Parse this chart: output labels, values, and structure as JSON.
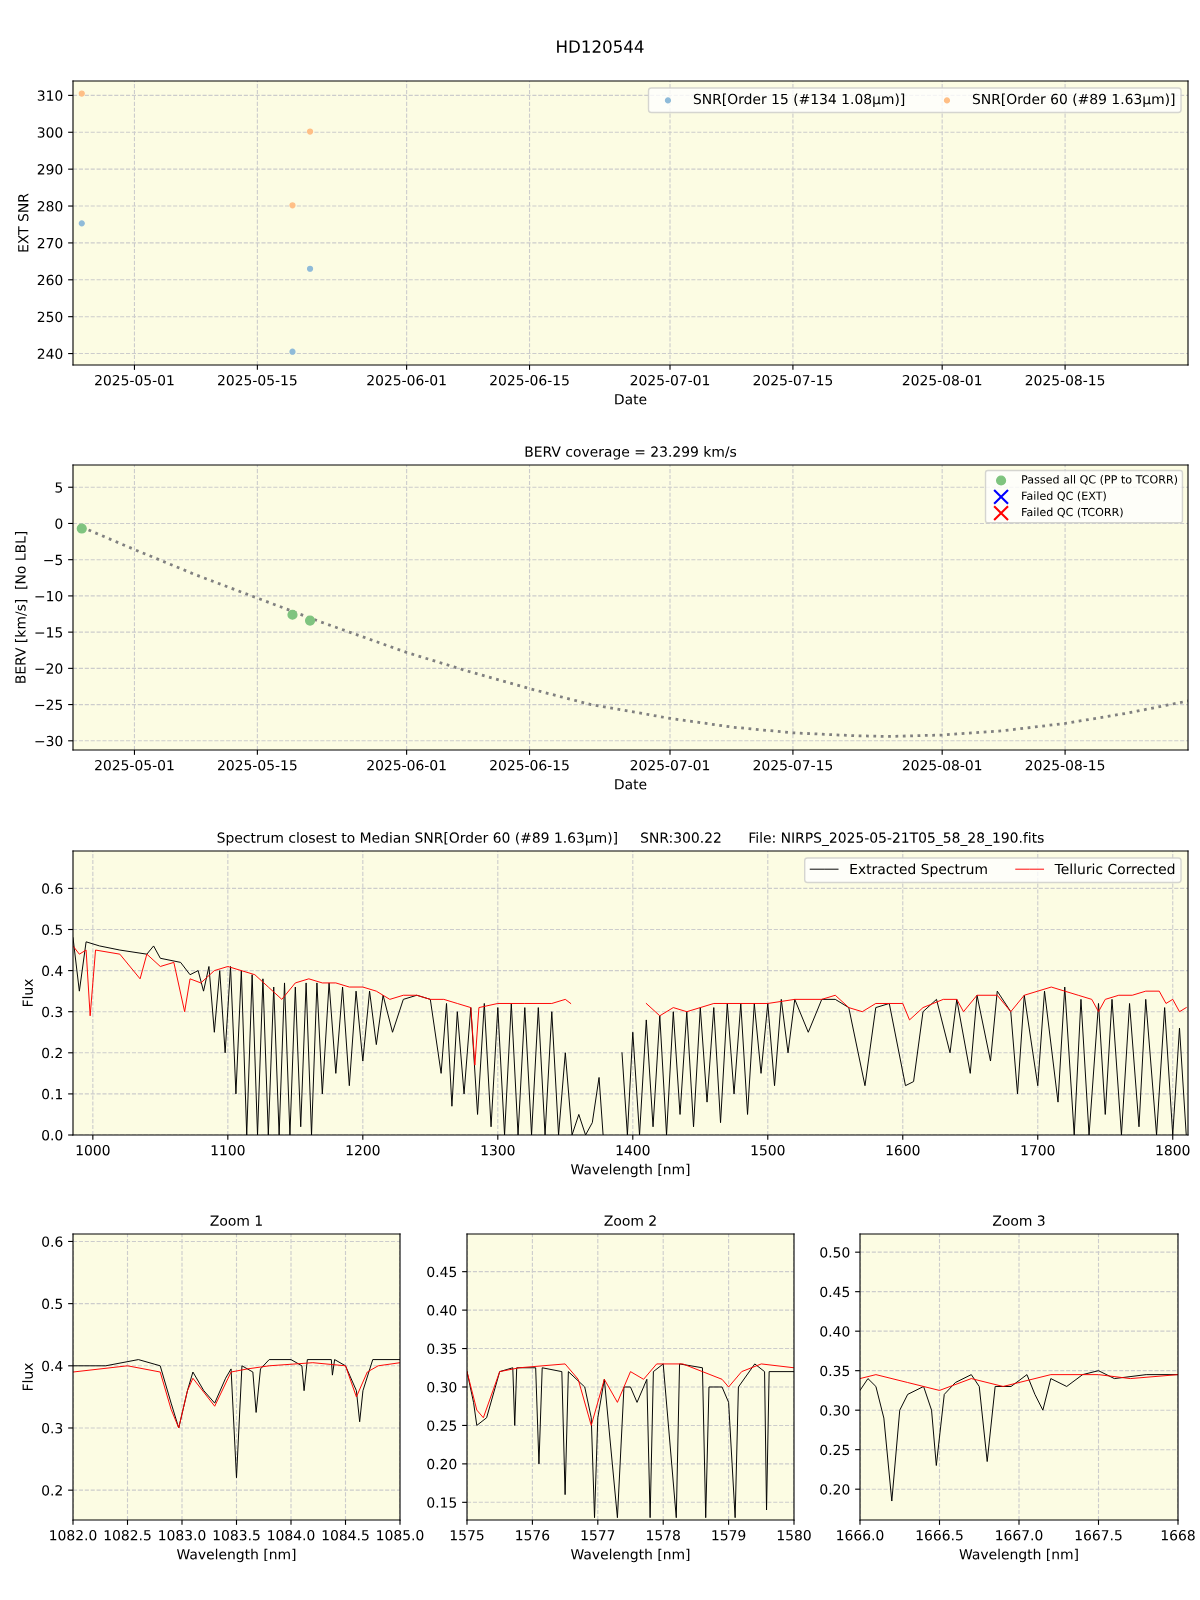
{
  "chart_data": [
    {
      "type": "scatter",
      "title": "HD120544",
      "xlabel": "Date",
      "ylabel": "EXT SNR",
      "grid": true,
      "legend": "top right",
      "xlim": [
        "2025-04-24",
        "2025-08-29"
      ],
      "xticks": [
        "2025-05-01",
        "2025-05-15",
        "2025-06-01",
        "2025-06-15",
        "2025-07-01",
        "2025-07-15",
        "2025-08-01",
        "2025-08-15"
      ],
      "ylim": [
        236.9,
        313.9
      ],
      "yticks": [
        240,
        250,
        260,
        270,
        280,
        290,
        300,
        310
      ],
      "marker": "circle",
      "series": [
        {
          "name": "SNR[Order 15 (#134 1.08μm)]",
          "color": "#8fbbd9",
          "x": [
            "2025-04-25",
            "2025-05-19",
            "2025-05-21"
          ],
          "values": [
            275.3,
            240.5,
            263.0
          ]
        },
        {
          "name": "SNR[Order 60 (#89 1.63μm)]",
          "color": "#ffbf86",
          "x": [
            "2025-04-25",
            "2025-05-19",
            "2025-05-21"
          ],
          "values": [
            310.5,
            280.2,
            300.2
          ]
        }
      ]
    },
    {
      "type": "scatter",
      "title": "BERV coverage = 23.299 km/s",
      "xlabel": "Date",
      "ylabel": "BERV [km/s]  [No LBL]",
      "grid": true,
      "legend": "top right",
      "xlim": [
        "2025-04-24",
        "2025-08-29"
      ],
      "xticks": [
        "2025-05-01",
        "2025-05-15",
        "2025-06-01",
        "2025-06-15",
        "2025-07-01",
        "2025-07-15",
        "2025-08-01",
        "2025-08-15"
      ],
      "ylim": [
        -31.27,
        8.07
      ],
      "yticks": [
        5,
        0,
        {
          "value": -5,
          "label": "−5"
        },
        {
          "value": -10,
          "label": "−10"
        },
        {
          "value": -15,
          "label": "−15"
        },
        {
          "value": -20,
          "label": "−20"
        },
        {
          "value": -25,
          "label": "−25"
        },
        {
          "value": -30,
          "label": "−30"
        }
      ],
      "series": [
        {
          "type": "line",
          "color": "#808080",
          "line_style": "dotted",
          "marker": "none",
          "x": [
            "2025-04-25",
            "2025-05-01",
            "2025-05-08",
            "2025-05-15",
            "2025-05-22",
            "2025-06-01",
            "2025-06-08",
            "2025-06-15",
            "2025-06-22",
            "2025-07-01",
            "2025-07-08",
            "2025-07-15",
            "2025-07-22",
            "2025-07-26",
            "2025-08-01",
            "2025-08-08",
            "2025-08-15",
            "2025-08-22",
            "2025-08-29"
          ],
          "values": [
            -0.5,
            -3.6,
            -7.1,
            -10.3,
            -13.5,
            -17.8,
            -20.4,
            -22.8,
            -25.0,
            -26.9,
            -28.1,
            -28.9,
            -29.3,
            -29.4,
            -29.2,
            -28.6,
            -27.6,
            -26.2,
            -24.5
          ]
        },
        {
          "name": "Passed all QC (PP to TCORR)",
          "color": "#7fc47f",
          "marker": "circle",
          "x": [
            "2025-04-25",
            "2025-05-19",
            "2025-05-21"
          ],
          "values": [
            -0.7,
            -12.6,
            -13.4
          ]
        },
        {
          "name": "Failed QC (EXT)",
          "color": "#0000ff",
          "marker": "cross"
        },
        {
          "name": "Failed QC (TCORR)",
          "color": "#ff0000",
          "marker": "cross"
        }
      ]
    },
    {
      "type": "line",
      "title": "Spectrum closest to Median SNR[Order 60 (#89 1.63μm)]     SNR:300.22      File: NIRPS_2025-05-21T05_58_28_190.fits",
      "xlabel": "Wavelength [nm]",
      "ylabel": "Flux",
      "grid": true,
      "legend": "top right",
      "line_style": "solid",
      "xlim": [
        985.3,
        1811.3
      ],
      "xticks": [
        1000,
        1100,
        1200,
        1300,
        1400,
        1500,
        1600,
        1700,
        1800
      ],
      "ylim": [
        0.0,
        0.691
      ],
      "yticks": [
        {
          "value": 0,
          "label": "0.0"
        },
        0.1,
        0.2,
        0.3,
        0.4,
        0.5,
        0.6
      ],
      "series": [
        {
          "name": "Extracted Spectrum",
          "color": "#000000",
          "x": [
            985.3,
            990,
            995,
            1005,
            1020,
            1040,
            1045,
            1050,
            1065,
            1072,
            1078,
            1082,
            1086,
            1090,
            1094,
            1098,
            1102,
            1106,
            1110,
            1114,
            1118,
            1122,
            1126,
            1130,
            1134,
            1138,
            1142,
            1146,
            1150,
            1154,
            1158,
            1162,
            1166,
            1170,
            1175,
            1180,
            1185,
            1190,
            1195,
            1200,
            1205,
            1210,
            1215,
            1222,
            1230,
            1240,
            1250,
            1258,
            1262,
            1266,
            1270,
            1275,
            1280,
            1285,
            1290,
            1295,
            1300,
            1305,
            1310,
            1315,
            1320,
            1325,
            1330,
            1335,
            1340,
            1345,
            1350,
            1355,
            1360,
            1365,
            1370,
            1375,
            1378,
            1385,
            1392,
            1396,
            1400,
            1405,
            1410,
            1415,
            1420,
            1425,
            1430,
            1435,
            1440,
            1445,
            1450,
            1455,
            1460,
            1465,
            1470,
            1475,
            1480,
            1485,
            1490,
            1495,
            1500,
            1505,
            1510,
            1515,
            1520,
            1530,
            1540,
            1550,
            1560,
            1572,
            1580,
            1590,
            1602,
            1608,
            1615,
            1625,
            1635,
            1640,
            1650,
            1655,
            1665,
            1670,
            1680,
            1685,
            1690,
            1700,
            1705,
            1715,
            1720,
            1727,
            1732,
            1738,
            1745,
            1750,
            1755,
            1762,
            1768,
            1775,
            1780,
            1788,
            1794,
            1800,
            1805,
            1810
          ],
          "values": [
            0.48,
            0.35,
            0.47,
            0.46,
            0.45,
            0.44,
            0.46,
            0.43,
            0.42,
            0.39,
            0.4,
            0.35,
            0.41,
            0.25,
            0.4,
            0.2,
            0.41,
            0.1,
            0.4,
            0.0,
            0.39,
            0.0,
            0.38,
            0.0,
            0.36,
            0.0,
            0.37,
            0.0,
            0.36,
            0.02,
            0.37,
            0.0,
            0.37,
            0.1,
            0.37,
            0.15,
            0.36,
            0.12,
            0.35,
            0.18,
            0.35,
            0.22,
            0.34,
            0.25,
            0.33,
            0.34,
            0.33,
            0.15,
            0.32,
            0.07,
            0.3,
            0.1,
            0.31,
            0.05,
            0.32,
            0.02,
            0.31,
            0.0,
            0.32,
            0.0,
            0.31,
            0.0,
            0.31,
            0.0,
            0.3,
            0.0,
            0.2,
            0.0,
            0.05,
            0.0,
            0.03,
            0.14,
            0.0,
            null,
            0.2,
            0.0,
            0.25,
            0.0,
            0.28,
            0.02,
            0.29,
            0.0,
            0.3,
            0.05,
            0.3,
            0.02,
            0.31,
            0.08,
            0.31,
            0.03,
            0.32,
            0.1,
            0.32,
            0.05,
            0.32,
            0.15,
            0.32,
            0.12,
            0.33,
            0.2,
            0.33,
            0.25,
            0.33,
            0.33,
            0.31,
            0.12,
            0.31,
            0.32,
            0.12,
            0.13,
            0.3,
            0.33,
            0.2,
            0.33,
            0.15,
            0.34,
            0.18,
            0.35,
            0.3,
            0.1,
            0.34,
            0.12,
            0.35,
            0.08,
            0.36,
            0.0,
            0.33,
            0.0,
            0.32,
            0.05,
            0.33,
            0.0,
            0.32,
            0.02,
            0.33,
            0.0,
            0.31,
            0.0,
            0.26,
            0.0
          ]
        },
        {
          "name": "Telluric Corrected",
          "color": "#ff0000",
          "x": [
            985.3,
            990,
            995,
            998,
            1002,
            1020,
            1035,
            1040,
            1050,
            1060,
            1068,
            1072,
            1080,
            1090,
            1100,
            1110,
            1120,
            1130,
            1140,
            1150,
            1160,
            1170,
            1180,
            1190,
            1200,
            1210,
            1220,
            1230,
            1240,
            1250,
            1260,
            1270,
            1280,
            1283,
            1286,
            1300,
            1320,
            1340,
            1350,
            1354,
            1380,
            1410,
            1420,
            1430,
            1440,
            1450,
            1460,
            1480,
            1500,
            1520,
            1540,
            1550,
            1560,
            1570,
            1580,
            1590,
            1600,
            1605,
            1615,
            1630,
            1640,
            1645,
            1655,
            1670,
            1680,
            1690,
            1700,
            1710,
            1720,
            1730,
            1740,
            1745,
            1750,
            1760,
            1770,
            1780,
            1790,
            1795,
            1800,
            1805,
            1810
          ],
          "values": [
            0.46,
            0.44,
            0.45,
            0.29,
            0.45,
            0.44,
            0.38,
            0.44,
            0.41,
            0.42,
            0.3,
            0.38,
            0.37,
            0.4,
            0.41,
            0.4,
            0.39,
            0.36,
            0.33,
            0.37,
            0.38,
            0.37,
            0.37,
            0.36,
            0.36,
            0.35,
            0.33,
            0.34,
            0.34,
            0.33,
            0.33,
            0.32,
            0.31,
            0.17,
            0.31,
            0.32,
            0.32,
            0.32,
            0.33,
            0.32,
            null,
            0.32,
            0.29,
            0.31,
            0.3,
            0.31,
            0.32,
            0.32,
            0.32,
            0.33,
            0.33,
            0.34,
            0.31,
            0.3,
            0.32,
            0.32,
            0.32,
            0.28,
            0.31,
            0.33,
            0.33,
            0.3,
            0.34,
            0.34,
            0.3,
            0.34,
            0.35,
            0.36,
            0.35,
            0.34,
            0.33,
            0.3,
            0.33,
            0.34,
            0.34,
            0.35,
            0.35,
            0.32,
            0.33,
            0.3,
            0.31
          ]
        }
      ]
    },
    {
      "type": "line",
      "title": "Zoom 1",
      "xlabel": "Wavelength [nm]",
      "ylabel": "Flux",
      "grid": true,
      "line_style": "solid",
      "xlim": [
        1082.0,
        1085.0
      ],
      "xticks": [
        {
          "value": 1082,
          "label": "1082.0"
        },
        1082.5,
        {
          "value": 1083,
          "label": "1083.0"
        },
        1083.5,
        {
          "value": 1084,
          "label": "1084.0"
        },
        1084.5,
        {
          "value": 1085,
          "label": "1085.0"
        }
      ],
      "ylim": [
        0.152,
        0.612
      ],
      "yticks": [
        0.2,
        0.3,
        0.4,
        0.5,
        0.6
      ],
      "series": [
        {
          "color": "#000000",
          "x": [
            1082.0,
            1082.3,
            1082.6,
            1082.8,
            1082.9,
            1082.97,
            1083.05,
            1083.1,
            1083.2,
            1083.3,
            1083.4,
            1083.45,
            1083.5,
            1083.55,
            1083.65,
            1083.68,
            1083.72,
            1083.8,
            1084.0,
            1084.1,
            1084.12,
            1084.15,
            1084.37,
            1084.38,
            1084.4,
            1084.5,
            1084.6,
            1084.63,
            1084.66,
            1084.75,
            1085.0
          ],
          "values": [
            0.4,
            0.4,
            0.41,
            0.4,
            0.34,
            0.3,
            0.36,
            0.39,
            0.36,
            0.34,
            0.38,
            0.395,
            0.22,
            0.4,
            0.39,
            0.325,
            0.395,
            0.41,
            0.41,
            0.4,
            0.36,
            0.41,
            0.41,
            0.385,
            0.41,
            0.4,
            0.36,
            0.31,
            0.36,
            0.41,
            0.41
          ]
        },
        {
          "color": "#ff0000",
          "x": [
            1082.0,
            1082.5,
            1082.8,
            1082.9,
            1082.97,
            1083.05,
            1083.1,
            1083.3,
            1083.45,
            1083.6,
            1083.8,
            1084.2,
            1084.5,
            1084.6,
            1084.7,
            1084.8,
            1085.0
          ],
          "values": [
            0.39,
            0.4,
            0.39,
            0.33,
            0.3,
            0.36,
            0.38,
            0.335,
            0.39,
            0.395,
            0.4,
            0.405,
            0.4,
            0.35,
            0.39,
            0.4,
            0.405
          ]
        }
      ]
    },
    {
      "type": "line",
      "title": "Zoom 2",
      "xlabel": "Wavelength [nm]",
      "grid": true,
      "line_style": "solid",
      "xlim": [
        1575,
        1580
      ],
      "xticks": [
        1575,
        1576,
        1577,
        1578,
        1579,
        1580
      ],
      "ylim": [
        0.127,
        0.499
      ],
      "yticks": [
        0.15,
        {
          "value": 0.2,
          "label": "0.20"
        },
        0.25,
        {
          "value": 0.3,
          "label": "0.30"
        },
        0.35,
        {
          "value": 0.4,
          "label": "0.40"
        },
        0.45
      ],
      "series": [
        {
          "color": "#000000",
          "x": [
            1575.0,
            1575.1,
            1575.15,
            1575.3,
            1575.5,
            1575.7,
            1575.73,
            1575.76,
            1576.05,
            1576.1,
            1576.15,
            1576.45,
            1576.5,
            1576.55,
            1576.8,
            1576.9,
            1576.95,
            1577.0,
            1577.1,
            1577.3,
            1577.4,
            1577.5,
            1577.6,
            1577.75,
            1577.8,
            1577.85,
            1578.0,
            1578.2,
            1578.25,
            1578.6,
            1578.65,
            1578.7,
            1578.9,
            1579.0,
            1579.1,
            1579.15,
            1579.4,
            1579.55,
            1579.58,
            1579.62,
            1580.0
          ],
          "values": [
            0.32,
            0.28,
            0.25,
            0.26,
            0.32,
            0.325,
            0.25,
            0.325,
            0.325,
            0.2,
            0.325,
            0.32,
            0.16,
            0.32,
            0.3,
            0.26,
            0.13,
            0.26,
            0.31,
            0.13,
            0.3,
            0.3,
            0.28,
            0.31,
            0.13,
            0.32,
            0.33,
            0.13,
            0.33,
            0.325,
            0.13,
            0.3,
            0.3,
            0.28,
            0.13,
            0.3,
            0.33,
            0.32,
            0.14,
            0.32,
            0.32
          ]
        },
        {
          "color": "#ff0000",
          "x": [
            1575.0,
            1575.15,
            1575.25,
            1575.5,
            1575.8,
            1576.5,
            1576.7,
            1576.9,
            1577.1,
            1577.3,
            1577.5,
            1577.7,
            1577.9,
            1578.3,
            1578.6,
            1578.9,
            1579.0,
            1579.2,
            1579.5,
            1580.0
          ],
          "values": [
            0.32,
            0.27,
            0.26,
            0.32,
            0.325,
            0.33,
            0.31,
            0.25,
            0.31,
            0.28,
            0.32,
            0.31,
            0.33,
            0.33,
            0.32,
            0.31,
            0.3,
            0.32,
            0.33,
            0.325
          ]
        }
      ]
    },
    {
      "type": "line",
      "title": "Zoom 3",
      "xlabel": "Wavelength [nm]",
      "grid": true,
      "line_style": "solid",
      "xlim": [
        1666.0,
        1668.0
      ],
      "xticks": [
        {
          "value": 1666,
          "label": "1666.0"
        },
        1666.5,
        {
          "value": 1667,
          "label": "1667.0"
        },
        1667.5,
        {
          "value": 1668,
          "label": "1668"
        }
      ],
      "ylim": [
        0.161,
        0.523
      ],
      "yticks": [
        {
          "value": 0.2,
          "label": "0.20"
        },
        0.25,
        {
          "value": 0.3,
          "label": "0.30"
        },
        0.35,
        {
          "value": 0.4,
          "label": "0.40"
        },
        0.45,
        {
          "value": 0.5,
          "label": "0.50"
        }
      ],
      "series": [
        {
          "color": "#000000",
          "x": [
            1666.0,
            1666.05,
            1666.1,
            1666.15,
            1666.2,
            1666.25,
            1666.3,
            1666.4,
            1666.45,
            1666.48,
            1666.53,
            1666.6,
            1666.7,
            1666.75,
            1666.8,
            1666.85,
            1666.95,
            1667.05,
            1667.1,
            1667.15,
            1667.2,
            1667.3,
            1667.4,
            1667.5,
            1667.6,
            1667.8,
            1668.0
          ],
          "values": [
            0.325,
            0.34,
            0.33,
            0.29,
            0.185,
            0.3,
            0.32,
            0.33,
            0.3,
            0.23,
            0.32,
            0.335,
            0.345,
            0.33,
            0.235,
            0.33,
            0.33,
            0.345,
            0.32,
            0.3,
            0.34,
            0.33,
            0.345,
            0.35,
            0.34,
            0.345,
            0.345
          ]
        },
        {
          "color": "#ff0000",
          "x": [
            1666.0,
            1666.1,
            1666.3,
            1666.5,
            1666.7,
            1666.9,
            1667.0,
            1667.2,
            1667.5,
            1667.7,
            1668.0
          ],
          "values": [
            0.34,
            0.345,
            0.335,
            0.325,
            0.34,
            0.33,
            0.335,
            0.345,
            0.345,
            0.34,
            0.345
          ]
        }
      ]
    }
  ]
}
